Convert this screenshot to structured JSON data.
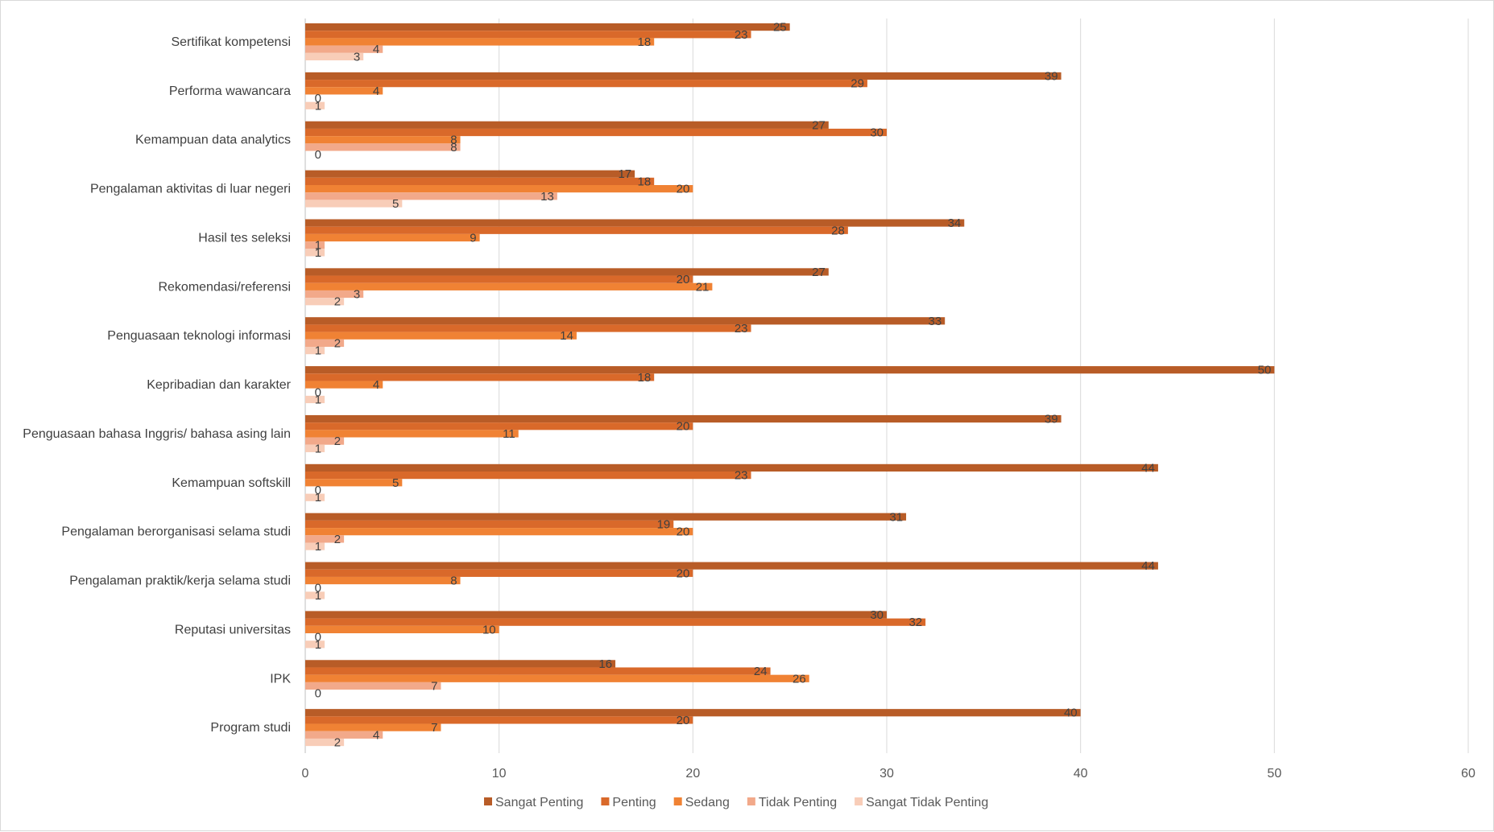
{
  "chart_data": {
    "type": "bar",
    "orientation": "horizontal",
    "title": "",
    "xlabel": "",
    "ylabel": "",
    "xlim": [
      0,
      60
    ],
    "xticks": [
      0,
      10,
      20,
      30,
      40,
      50,
      60
    ],
    "grid": "vertical",
    "legend_position": "bottom",
    "categories": [
      "Sertifikat kompetensi",
      "Performa wawancara",
      "Kemampuan data analytics",
      "Pengalaman aktivitas di luar negeri",
      "Hasil tes seleksi",
      "Rekomendasi/referensi",
      "Penguasaan teknologi informasi",
      "Kepribadian dan karakter",
      "Penguasaan bahasa Inggris/ bahasa asing lain",
      "Kemampuan softskill",
      "Pengalaman berorganisasi selama studi",
      "Pengalaman praktik/kerja selama studi",
      "Reputasi universitas",
      "IPK",
      "Program studi"
    ],
    "series": [
      {
        "name": "Sangat Penting",
        "color": "#b85c27",
        "values": [
          25,
          39,
          27,
          17,
          34,
          27,
          33,
          50,
          39,
          44,
          31,
          44,
          30,
          16,
          40
        ]
      },
      {
        "name": "Penting",
        "color": "#d9692a",
        "values": [
          23,
          29,
          30,
          18,
          28,
          20,
          23,
          18,
          20,
          23,
          19,
          20,
          32,
          24,
          20
        ]
      },
      {
        "name": "Sedang",
        "color": "#f08234",
        "values": [
          18,
          4,
          8,
          20,
          9,
          21,
          14,
          4,
          11,
          5,
          20,
          8,
          10,
          26,
          7
        ]
      },
      {
        "name": "Tidak Penting",
        "color": "#f2a98a",
        "values": [
          4,
          0,
          8,
          13,
          1,
          3,
          2,
          0,
          2,
          0,
          2,
          0,
          0,
          7,
          4
        ]
      },
      {
        "name": "Sangat Tidak Penting",
        "color": "#f8cdb8",
        "values": [
          3,
          1,
          0,
          5,
          1,
          2,
          1,
          1,
          1,
          1,
          1,
          1,
          1,
          0,
          2
        ]
      }
    ]
  }
}
